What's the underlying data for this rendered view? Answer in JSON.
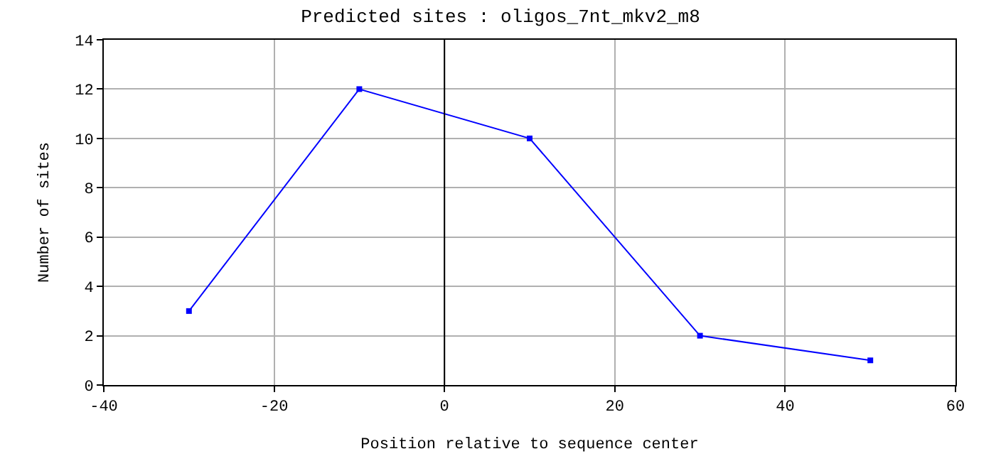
{
  "chart_data": {
    "type": "line",
    "title": "Predicted sites : oligos_7nt_mkv2_m8",
    "xlabel": "Position relative to sequence center",
    "ylabel": "Number of sites",
    "x": [
      -30,
      -10,
      10,
      30,
      50
    ],
    "series": [
      {
        "color": "#0000ff",
        "values": [
          3,
          12,
          10,
          2,
          1
        ]
      }
    ],
    "xlim": [
      -40,
      60
    ],
    "xticks": [
      -40,
      -20,
      0,
      20,
      40,
      60
    ],
    "ylim": [
      0,
      14
    ],
    "yticks": [
      0,
      2,
      4,
      6,
      8,
      10,
      12,
      14
    ],
    "grid": true,
    "marker": "square",
    "line_style": "solid",
    "ref_lines": [
      {
        "axis": "x",
        "value": 0,
        "color": "#000000"
      }
    ]
  }
}
